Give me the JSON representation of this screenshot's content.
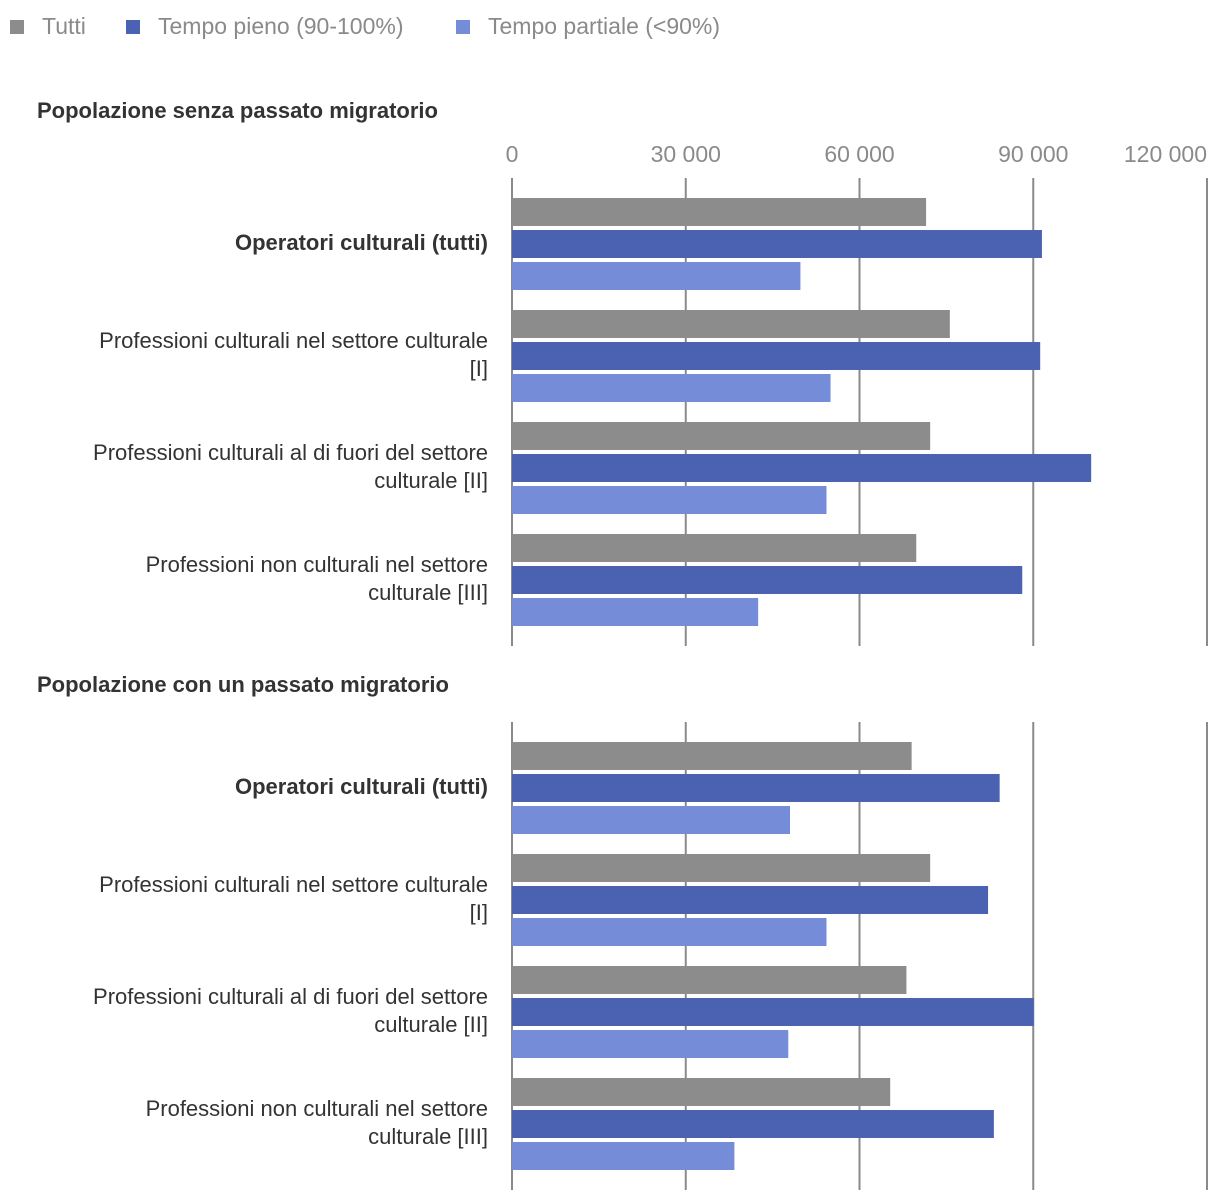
{
  "chart_data": {
    "type": "bar",
    "orientation": "horizontal",
    "legend": [
      {
        "name": "Tutti",
        "color": "#8c8c8c"
      },
      {
        "name": "Tempo pieno (90-100%)",
        "color": "#4b62b2"
      },
      {
        "name": "Tempo partiale (<90%)",
        "color": "#758cd9"
      }
    ],
    "xlim": [
      0,
      120000
    ],
    "ticks": [
      {
        "value": 0,
        "label": "0"
      },
      {
        "value": 30000,
        "label": "30 000"
      },
      {
        "value": 60000,
        "label": "60 000"
      },
      {
        "value": 90000,
        "label": "90 000"
      },
      {
        "value": 120000,
        "label": "120 000"
      }
    ],
    "groups": [
      {
        "title": "Popolazione senza passato migratorio",
        "categories": [
          {
            "lines": [
              "Operatori culturali (tutti)"
            ],
            "bold": true,
            "values": [
              71500,
              91500,
              49800
            ]
          },
          {
            "lines": [
              "Professioni culturali nel settore culturale",
              "[I]"
            ],
            "bold": false,
            "values": [
              75600,
              91200,
              55000
            ]
          },
          {
            "lines": [
              "Professioni culturali al di fuori del settore",
              "culturale [II]"
            ],
            "bold": false,
            "values": [
              72200,
              100000,
              54300
            ]
          },
          {
            "lines": [
              "Professioni non culturali nel settore",
              "culturale [III]"
            ],
            "bold": false,
            "values": [
              69800,
              88100,
              42500
            ]
          }
        ]
      },
      {
        "title": "Popolazione con un passato migratorio",
        "categories": [
          {
            "lines": [
              "Operatori culturali (tutti)"
            ],
            "bold": true,
            "values": [
              69000,
              84200,
              48000
            ]
          },
          {
            "lines": [
              "Professioni culturali nel settore culturale",
              "[I]"
            ],
            "bold": false,
            "values": [
              72200,
              82200,
              54300
            ]
          },
          {
            "lines": [
              "Professioni culturali al di fuori del settore",
              "culturale [II]"
            ],
            "bold": false,
            "values": [
              68100,
              90100,
              47700
            ]
          },
          {
            "lines": [
              "Professioni non culturali nel settore",
              "culturale [III]"
            ],
            "bold": false,
            "values": [
              65300,
              83200,
              38400
            ]
          }
        ]
      }
    ]
  }
}
